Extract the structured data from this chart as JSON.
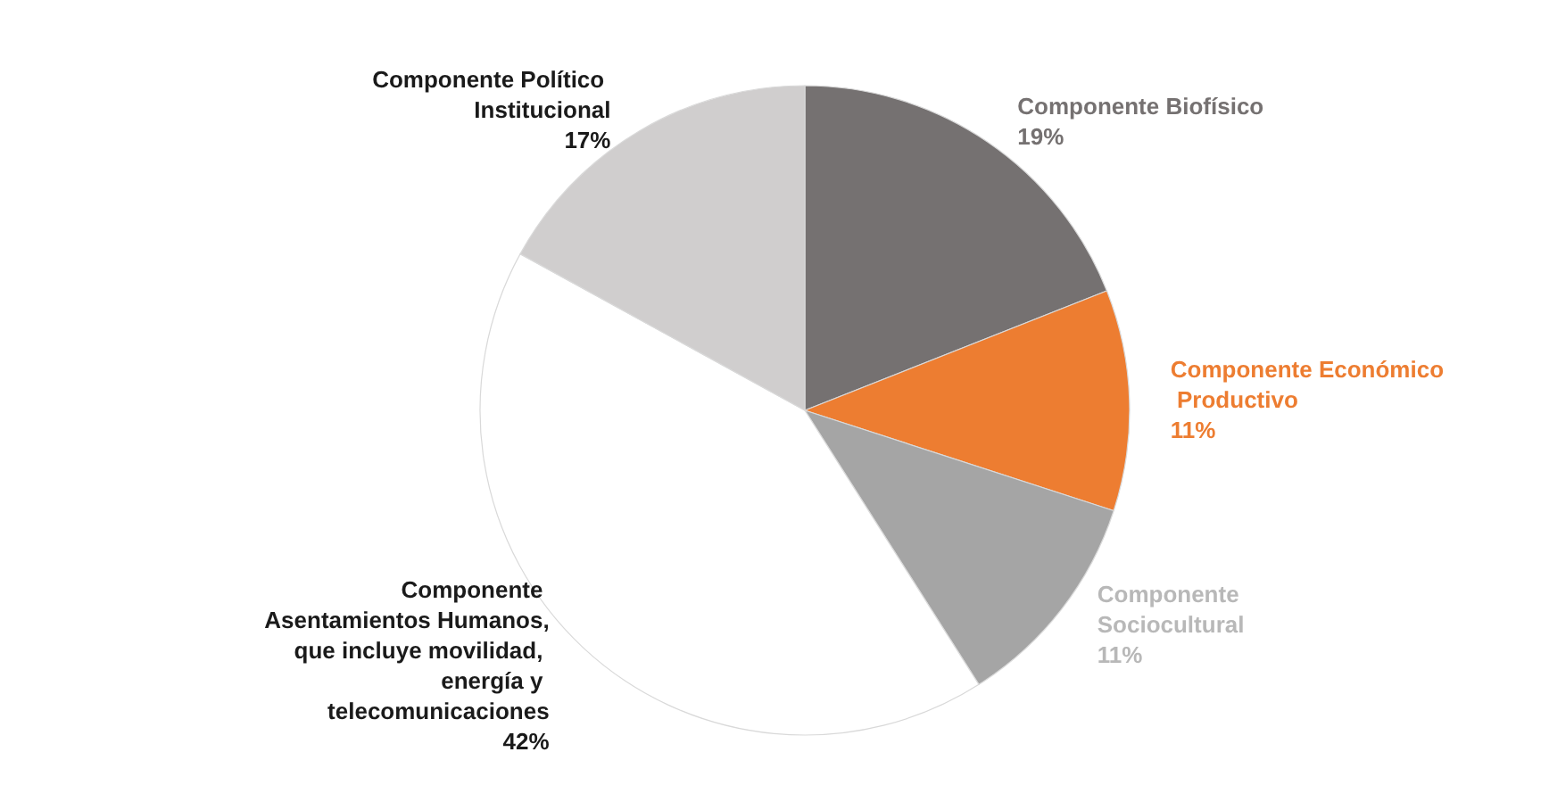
{
  "chart_data": {
    "type": "pie",
    "categories": [
      "Componente Biofísico",
      "Componente Económico Productivo",
      "Componente Sociocultural",
      "Componente Asentamientos Humanos, que incluye movilidad, energía y telecomunicaciones",
      "Componente Político Institucional"
    ],
    "values": [
      19,
      11,
      11,
      42,
      17
    ],
    "value_labels": [
      "19%",
      "11%",
      "11%",
      "42%",
      "17%"
    ],
    "colors": [
      "#757171",
      "#ed7d31",
      "#a5a5a5",
      "#ffffff",
      "#d0cece"
    ],
    "legend": false
  }
}
